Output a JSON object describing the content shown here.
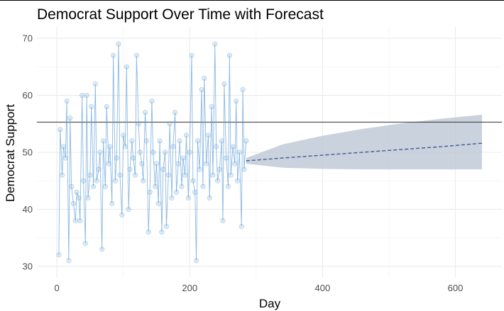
{
  "chart_data": {
    "type": "line",
    "title": "Democrat Support Over Time with Forecast",
    "xlabel": "Day",
    "ylabel": "Democrat Support",
    "xlim": [
      -30,
      670
    ],
    "ylim": [
      28,
      72
    ],
    "x_ticks": [
      0,
      200,
      400,
      600
    ],
    "y_ticks": [
      30,
      40,
      50,
      60,
      70
    ],
    "grid": true,
    "legend": "none",
    "reference_line": {
      "y": 55.3,
      "color": "#333333"
    },
    "series": [
      {
        "role": "observed",
        "color": "#5b9bd5",
        "style": "line+points",
        "x": [
          3,
          5,
          8,
          10,
          13,
          15,
          18,
          20,
          22,
          25,
          28,
          30,
          33,
          35,
          38,
          40,
          43,
          45,
          47,
          50,
          52,
          55,
          58,
          60,
          63,
          65,
          68,
          70,
          73,
          75,
          78,
          80,
          83,
          85,
          88,
          90,
          93,
          95,
          98,
          100,
          103,
          105,
          108,
          110,
          113,
          115,
          118,
          120,
          123,
          125,
          128,
          130,
          133,
          135,
          138,
          140,
          143,
          145,
          148,
          150,
          153,
          155,
          158,
          160,
          163,
          165,
          168,
          170,
          173,
          175,
          178,
          180,
          183,
          185,
          188,
          190,
          193,
          195,
          198,
          200,
          203,
          205,
          208,
          210,
          212,
          215,
          218,
          220,
          222,
          225,
          228,
          230,
          233,
          235,
          238,
          240,
          242,
          245,
          248,
          250,
          252,
          255,
          258,
          260,
          262,
          265,
          268,
          270,
          272,
          275,
          278,
          280,
          282,
          285
        ],
        "y": [
          32,
          54,
          46,
          51,
          49,
          59,
          31,
          56,
          44,
          41,
          38,
          43,
          42,
          38,
          60,
          45,
          34,
          60,
          42,
          46,
          58,
          44,
          62,
          45,
          47,
          50,
          33,
          52,
          44,
          58,
          48,
          51,
          41,
          67,
          45,
          49,
          69,
          46,
          39,
          53,
          51,
          65,
          40,
          47,
          52,
          49,
          46,
          67,
          55,
          50,
          48,
          45,
          57,
          52,
          36,
          43,
          59,
          50,
          44,
          48,
          41,
          52,
          36,
          47,
          50,
          37,
          46,
          55,
          42,
          51,
          57,
          43,
          48,
          52,
          44,
          49,
          46,
          53,
          42,
          50,
          67,
          45,
          43,
          31,
          52,
          47,
          61,
          44,
          63,
          48,
          53,
          42,
          58,
          46,
          69,
          51,
          45,
          47,
          52,
          38,
          62,
          49,
          44,
          67,
          46,
          51,
          48,
          59,
          45,
          50,
          37,
          61,
          47,
          52
        ]
      },
      {
        "role": "forecast",
        "color": "#3a5f8f",
        "style": "dashed",
        "x": [
          285,
          340,
          400,
          460,
          520,
          580,
          640
        ],
        "y": [
          48.5,
          49.0,
          49.5,
          50.0,
          50.5,
          51.0,
          51.6
        ]
      }
    ],
    "forecast_band": {
      "color": "#b8c3d3",
      "x": [
        285,
        340,
        400,
        460,
        520,
        580,
        640
      ],
      "lower": [
        48.0,
        47.3,
        47.1,
        47.0,
        47.0,
        47.0,
        47.0
      ],
      "upper": [
        49.0,
        51.4,
        52.9,
        54.1,
        55.1,
        55.9,
        56.6
      ]
    }
  }
}
